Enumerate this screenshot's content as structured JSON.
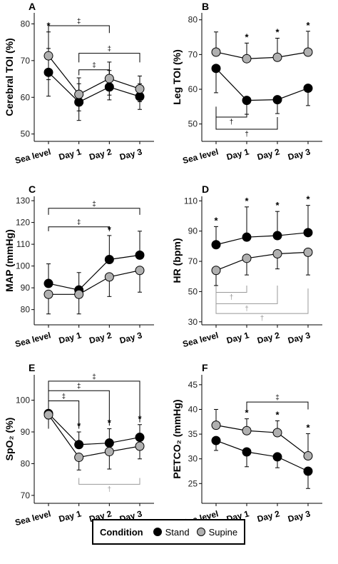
{
  "colors": {
    "stand": "#000000",
    "supine": "#b0b0b0",
    "axis": "#000000",
    "bracket_stand": "#000000",
    "bracket_supine": "#999999"
  },
  "legend": {
    "title": "Condition",
    "items": [
      {
        "label": "Stand",
        "color": "#000000"
      },
      {
        "label": "Supine",
        "color": "#b0b0b0"
      }
    ]
  },
  "chart_data": [
    {
      "panel": "A",
      "type": "line",
      "ylabel": "Cerebral TOI (%)",
      "categories": [
        "Sea level",
        "Day 1",
        "Day 2",
        "Day 3"
      ],
      "ylim": [
        48,
        83
      ],
      "yticks": [
        50,
        60,
        70,
        80
      ],
      "series": [
        {
          "name": "Stand",
          "values": [
            66.8,
            58.7,
            62.8,
            60.2
          ],
          "err_up": [
            6.5,
            5.0,
            4.5,
            3.5
          ],
          "err_down": [
            6.5,
            5.0,
            3.5,
            3.5
          ]
        },
        {
          "name": "Supine",
          "values": [
            71.3,
            60.8,
            65.1,
            62.3
          ],
          "err_up": [
            6.5,
            4.5,
            4.5,
            3.5
          ],
          "err_down": [
            6.5,
            4.5,
            4.5,
            3.5
          ]
        }
      ],
      "stars": [
        {
          "index": 0,
          "symbol": "*"
        }
      ],
      "brackets": [
        {
          "from": 0,
          "to": 2,
          "level": 79.5,
          "tip": 77.5,
          "symbol": "‡",
          "color": "stand"
        },
        {
          "from": 1,
          "to": 3,
          "level": 72.0,
          "tip": 69.5,
          "symbol": "‡",
          "color": "stand"
        },
        {
          "from": 1,
          "to": 2,
          "level": 67.5,
          "tip": 66.0,
          "symbol": "‡",
          "color": "stand"
        }
      ]
    },
    {
      "panel": "B",
      "type": "line",
      "ylabel": "Leg TOI (%)",
      "categories": [
        "Sea level",
        "Day 1",
        "Day 2",
        "Day 3"
      ],
      "ylim": [
        45,
        82
      ],
      "yticks": [
        50,
        60,
        70,
        80
      ],
      "series": [
        {
          "name": "Stand",
          "values": [
            66.0,
            56.8,
            57.0,
            60.3
          ],
          "err_up": [
            0,
            0,
            0,
            0
          ],
          "err_down": [
            7.0,
            4.0,
            4.0,
            5.0
          ]
        },
        {
          "name": "Supine",
          "values": [
            70.7,
            68.8,
            69.2,
            70.7
          ],
          "err_up": [
            5.8,
            4.5,
            5.5,
            6.0
          ],
          "err_down": [
            0,
            0,
            0,
            0
          ]
        }
      ],
      "stars": [
        {
          "index": 1,
          "symbol": "*"
        },
        {
          "index": 2,
          "symbol": "*"
        },
        {
          "index": 3,
          "symbol": "*"
        }
      ],
      "brackets": [
        {
          "from": 0,
          "to": 1,
          "level": 52.0,
          "tip": 55.0,
          "symbol": "†",
          "color": "stand",
          "below": true
        },
        {
          "from": 0,
          "to": 2,
          "level": 48.5,
          "tip": 52.0,
          "symbol": "†",
          "color": "stand",
          "below": true
        }
      ]
    },
    {
      "panel": "C",
      "type": "line",
      "ylabel": "MAP (mmHg)",
      "categories": [
        "Sea level",
        "Day 1",
        "Day 2",
        "Day 3"
      ],
      "ylim": [
        73,
        132
      ],
      "yticks": [
        80,
        90,
        100,
        110,
        120,
        130
      ],
      "series": [
        {
          "name": "Stand",
          "values": [
            92,
            89,
            103,
            105
          ],
          "err_up": [
            9,
            8,
            11,
            11
          ],
          "err_down": [
            0,
            0,
            0,
            0
          ]
        },
        {
          "name": "Supine",
          "values": [
            87,
            87,
            95,
            98
          ],
          "err_up": [
            0,
            0,
            0,
            0
          ],
          "err_down": [
            9,
            9,
            9,
            10
          ]
        }
      ],
      "stars": [
        {
          "index": 2,
          "symbol": "*"
        }
      ],
      "brackets": [
        {
          "from": 0,
          "to": 3,
          "level": 126.5,
          "tip": 123.5,
          "symbol": "‡",
          "color": "stand"
        },
        {
          "from": 0,
          "to": 2,
          "level": 118.0,
          "tip": 116.0,
          "symbol": "‡",
          "color": "stand"
        }
      ]
    },
    {
      "panel": "D",
      "type": "line",
      "ylabel": "HR (bpm)",
      "categories": [
        "Sea level",
        "Day 1",
        "Day 2",
        "Day 3"
      ],
      "ylim": [
        28,
        113
      ],
      "yticks": [
        30,
        50,
        70,
        90,
        110
      ],
      "series": [
        {
          "name": "Stand",
          "values": [
            81,
            86,
            87,
            89
          ],
          "err_up": [
            12,
            20,
            16,
            18
          ],
          "err_down": [
            0,
            0,
            0,
            0
          ]
        },
        {
          "name": "Supine",
          "values": [
            64,
            72,
            75,
            76
          ],
          "err_up": [
            0,
            0,
            0,
            0
          ],
          "err_down": [
            10,
            11,
            10,
            15
          ]
        }
      ],
      "stars": [
        {
          "index": 0,
          "symbol": "*"
        },
        {
          "index": 1,
          "symbol": "*"
        },
        {
          "index": 2,
          "symbol": "*"
        },
        {
          "index": 3,
          "symbol": "*"
        }
      ],
      "brackets": [
        {
          "from": 0,
          "to": 1,
          "level": 49.5,
          "tip": 54.0,
          "symbol": "†",
          "color": "supine",
          "below": true
        },
        {
          "from": 0,
          "to": 2,
          "level": 42.0,
          "tip": 54.0,
          "symbol": "†",
          "color": "supine",
          "below": true
        },
        {
          "from": 0,
          "to": 3,
          "level": 35.5,
          "tip": 52.0,
          "symbol": "†",
          "color": "supine",
          "below": true
        }
      ]
    },
    {
      "panel": "E",
      "type": "line",
      "ylabel": "SpO₂ (%)",
      "categories": [
        "Sea level",
        "Day 1",
        "Day 2",
        "Day 3"
      ],
      "ylim": [
        67.5,
        108
      ],
      "yticks": [
        70,
        80,
        90,
        100
      ],
      "series": [
        {
          "name": "Stand",
          "values": [
            95.8,
            86.0,
            86.5,
            88.3
          ],
          "err_up": [
            1.2,
            4.0,
            4.5,
            4.0
          ],
          "err_down": [
            1.2,
            0,
            0,
            0
          ]
        },
        {
          "name": "Supine",
          "values": [
            95.4,
            82.0,
            83.8,
            85.5
          ],
          "err_up": [
            0,
            0,
            0,
            0
          ],
          "err_down": [
            1.3,
            4.0,
            5.5,
            4.0
          ]
        }
      ],
      "stars": [
        {
          "index": 1,
          "symbol": "*"
        },
        {
          "index": 2,
          "symbol": "*"
        },
        {
          "index": 3,
          "symbol": "*"
        }
      ],
      "brackets": [
        {
          "from": 0,
          "to": 3,
          "level": 106.0,
          "tip": 93.0,
          "symbol": "‡",
          "color": "stand"
        },
        {
          "from": 0,
          "to": 2,
          "level": 103.0,
          "tip": 92.0,
          "symbol": "‡",
          "color": "stand"
        },
        {
          "from": 0,
          "to": 1,
          "level": 99.8,
          "tip": 91.0,
          "symbol": "‡",
          "color": "stand"
        },
        {
          "from": 1,
          "to": 3,
          "level": 73.5,
          "tip": 75.5,
          "symbol": "†",
          "color": "supine",
          "below": true
        }
      ]
    },
    {
      "panel": "F",
      "type": "line",
      "ylabel": "PETCO₂ (mmHg)",
      "categories": [
        "Sea level",
        "Day 1",
        "Day 2",
        "Day 3"
      ],
      "ylim": [
        21,
        47
      ],
      "yticks": [
        25,
        30,
        35,
        40,
        45
      ],
      "series": [
        {
          "name": "Stand",
          "values": [
            33.7,
            31.4,
            30.4,
            27.5
          ],
          "err_up": [
            0,
            0,
            0,
            0
          ],
          "err_down": [
            2.0,
            3.0,
            2.2,
            3.5
          ]
        },
        {
          "name": "Supine",
          "values": [
            36.8,
            35.7,
            35.3,
            30.6
          ],
          "err_up": [
            3.2,
            2.4,
            2.4,
            4.5
          ],
          "err_down": [
            0,
            0,
            0,
            0
          ]
        }
      ],
      "stars": [
        {
          "index": 1,
          "symbol": "*"
        },
        {
          "index": 2,
          "symbol": "*"
        },
        {
          "index": 3,
          "symbol": "*"
        }
      ],
      "brackets": [
        {
          "from": 1,
          "to": 3,
          "level": 41.5,
          "tip": 40.0,
          "symbol": "‡",
          "color": "stand"
        }
      ]
    }
  ]
}
